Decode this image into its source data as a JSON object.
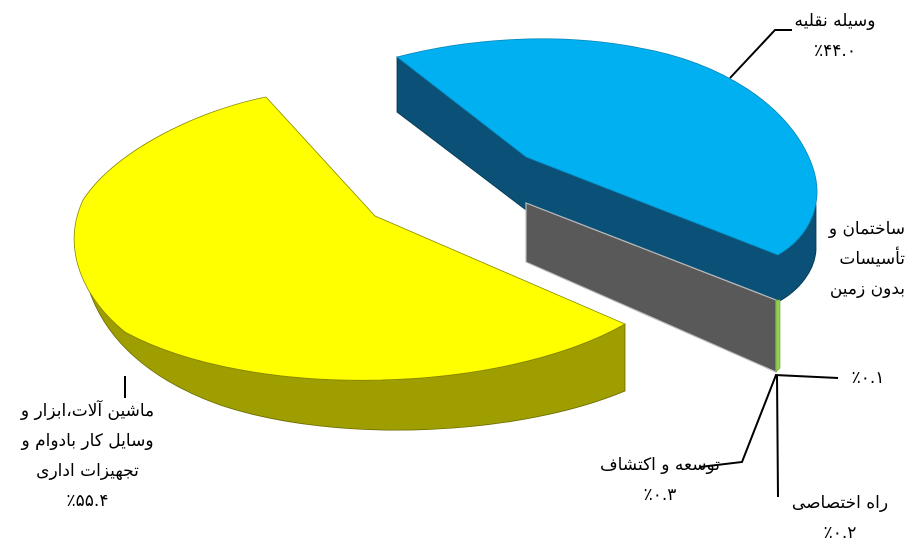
{
  "chart_data": {
    "type": "pie",
    "style": "3d-exploded",
    "series": [
      {
        "label": "ماشین آلات،ابزار و وسایل کار بادوام و تجهیزات اداری",
        "label_lines": [
          "ماشین آلات،ابزار و",
          "وسایل کار بادوام و",
          "تجهیزات اداری"
        ],
        "value": 55.4,
        "value_text": "٪۵۵.۴",
        "color": "#ffff00"
      },
      {
        "label": "وسیله نقلیه",
        "label_lines": [
          "وسیله نقلیه"
        ],
        "value": 44.0,
        "value_text": "٪۴۴.۰",
        "color": "#00b0f0"
      },
      {
        "label": "ساختمان و تأسیسات بدون زمین",
        "label_lines": [
          "ساختمان و",
          "تأسیسات",
          "بدون زمین"
        ],
        "value": 0.1,
        "value_text": "٪۰.۱",
        "color": "#7f7f7f"
      },
      {
        "label": "توسعه و اکتشاف",
        "label_lines": [
          "توسعه و اکتشاف"
        ],
        "value": 0.3,
        "value_text": "٪۰.۳",
        "color": "#c4d79b"
      },
      {
        "label": "راه اختصاصی",
        "label_lines": [
          "راه اختصاصی"
        ],
        "value": 0.2,
        "value_text": "٪۰.۲",
        "color": "#92d050"
      }
    ]
  }
}
